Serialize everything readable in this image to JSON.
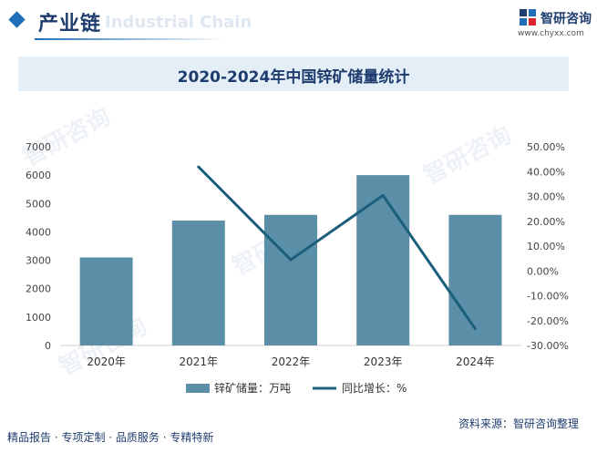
{
  "header": {
    "title": "产业链",
    "subtitle_en": "Industrial Chain",
    "brand_name": "智研咨询",
    "brand_url": "www.chyxx.com"
  },
  "footer": {
    "slogan": "精品报告 · 专项定制 · 品质服务 · 专精特新",
    "source": "资料来源：智研咨询整理"
  },
  "colors": {
    "bar": "#5b8fa8",
    "line": "#1b5f7c",
    "title": "#1f3c6e",
    "banner": "#e3eef6"
  },
  "chart_data": {
    "type": "bar+line",
    "title": "2020-2024年中国锌矿储量统计",
    "categories": [
      "2020年",
      "2021年",
      "2022年",
      "2023年",
      "2024年"
    ],
    "series": [
      {
        "name": "锌矿储量：万吨",
        "type": "bar",
        "axis": "left",
        "values": [
          3100,
          4400,
          4600,
          6000,
          4600
        ]
      },
      {
        "name": "同比增长：%",
        "type": "line",
        "axis": "right",
        "values": [
          null,
          41.9,
          4.5,
          30.4,
          -23.3
        ]
      }
    ],
    "left_axis": {
      "min": 0,
      "max": 7000,
      "ticks": [
        "0",
        "1000",
        "2000",
        "3000",
        "4000",
        "5000",
        "6000",
        "7000"
      ]
    },
    "right_axis": {
      "min": -30,
      "max": 50,
      "ticks": [
        "-30.00%",
        "-20.00%",
        "-10.00%",
        "0.00%",
        "10.00%",
        "20.00%",
        "30.00%",
        "40.00%",
        "50.00%"
      ]
    },
    "legend": [
      "锌矿储量：万吨",
      "同比增长：%"
    ],
    "legend_position": "bottom"
  }
}
